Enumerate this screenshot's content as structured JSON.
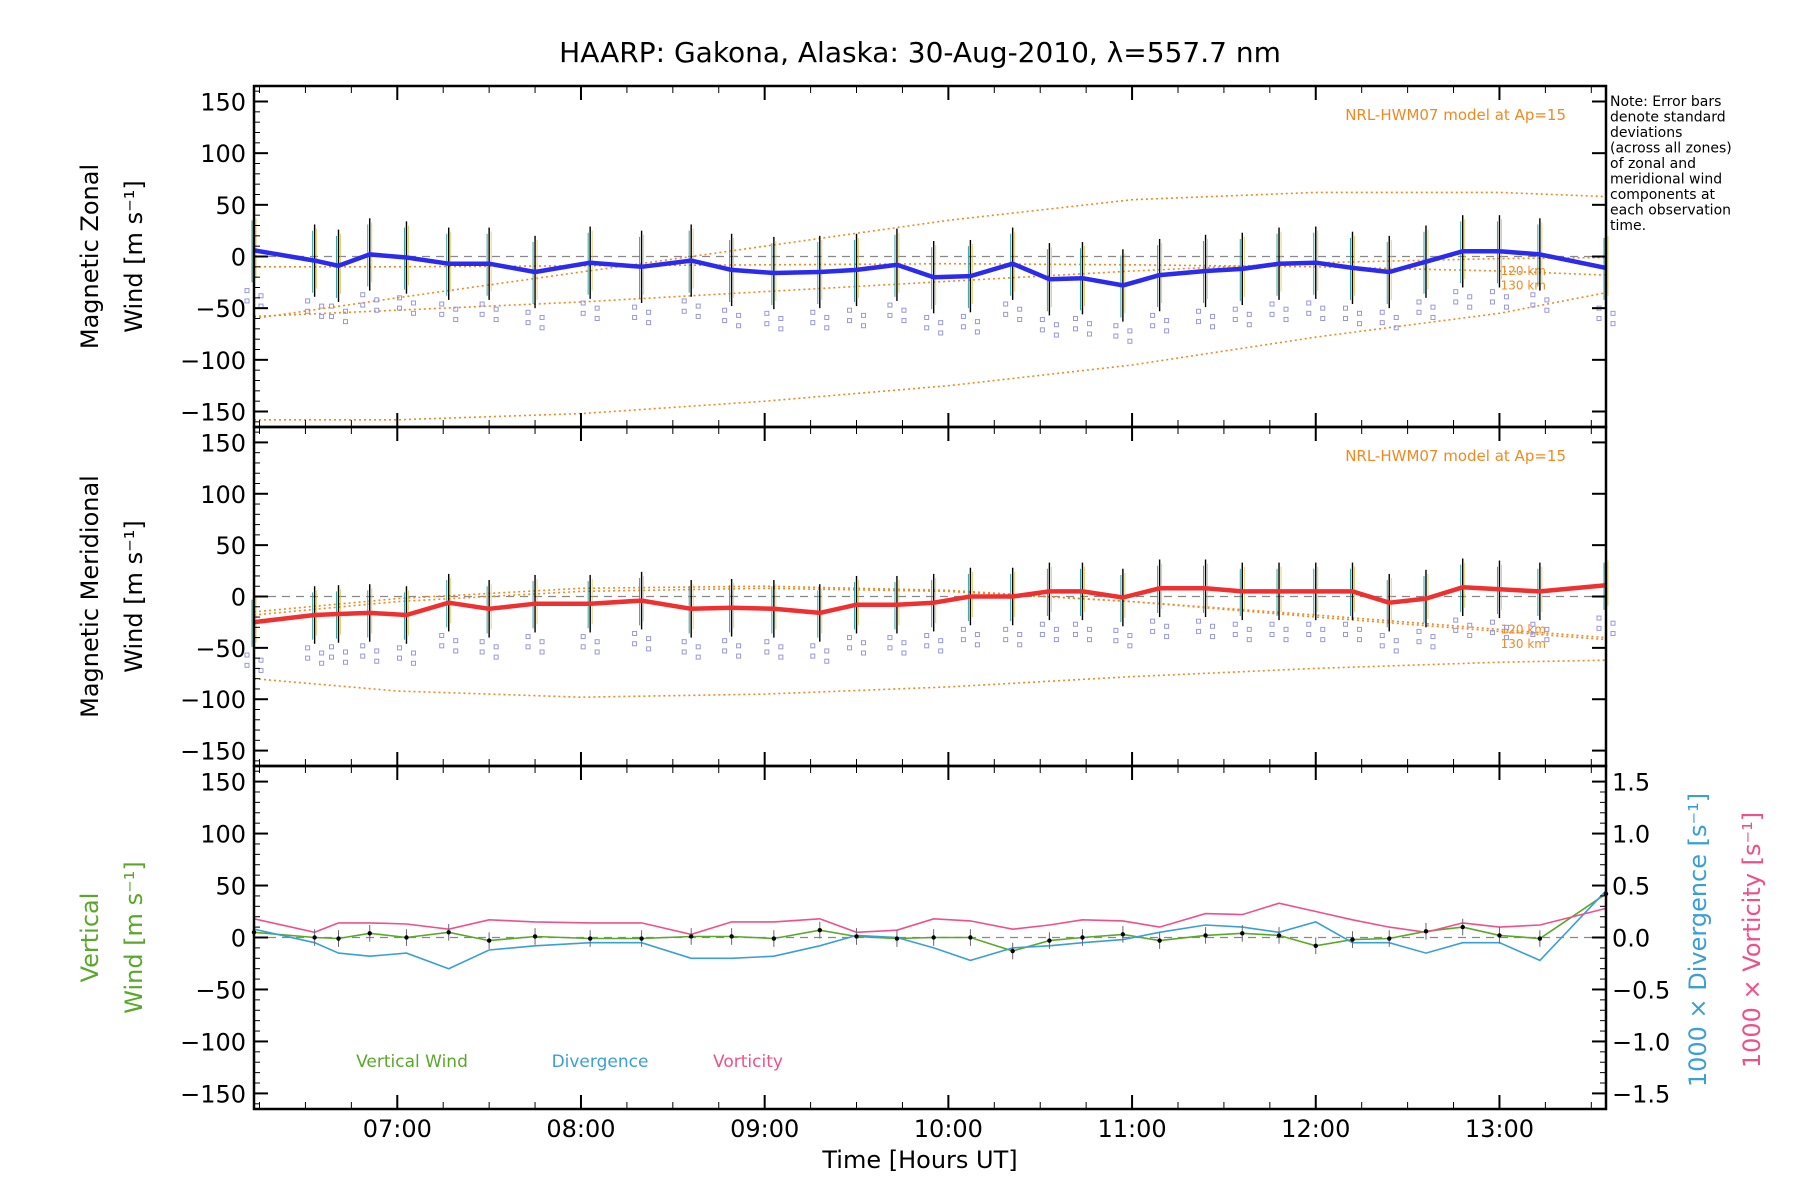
{
  "figure": {
    "title": "HAARP: Gakona,  Alaska: 30-Aug-2010, λ=557.7 nm",
    "note": [
      "Note: Error bars",
      "denote standard",
      "deviations",
      "(across all zones)",
      "of zonal and",
      "meridional wind",
      "components at",
      "each observation",
      "time."
    ],
    "xlabel": "Time [Hours UT]",
    "model_label": "NRL-HWM07 model at Ap=15",
    "km_labels": [
      "120 km",
      "130 km"
    ]
  },
  "colors": {
    "zonal": "#2b2bf0",
    "meridional": "#f03030",
    "vertical": "#5aa82a",
    "divergence": "#3a9fd6",
    "vorticity": "#f0508a",
    "model": "#f08a20",
    "scatter": "#9898d8"
  },
  "chart_data": [
    {
      "type": "line",
      "panel": "zonal",
      "ylabel_lines": [
        "Magnetic Zonal",
        "Wind [m s⁻¹]"
      ],
      "ylim": [
        -165,
        165
      ],
      "yticks": [
        "150",
        "100",
        "50",
        "0",
        "−50",
        "−100",
        "−150"
      ],
      "xlim": [
        6.22,
        13.58
      ],
      "xticks": [
        "07:00",
        "08:00",
        "09:00",
        "10:00",
        "11:00",
        "12:00",
        "13:00"
      ],
      "x": [
        6.22,
        6.55,
        6.68,
        6.85,
        7.05,
        7.28,
        7.5,
        7.75,
        8.05,
        8.33,
        8.6,
        8.82,
        9.05,
        9.3,
        9.5,
        9.72,
        9.92,
        10.12,
        10.35,
        10.55,
        10.73,
        10.95,
        11.15,
        11.4,
        11.6,
        11.8,
        12.0,
        12.2,
        12.4,
        12.6,
        12.8,
        13.0,
        13.22,
        13.58
      ],
      "values": [
        6,
        -4,
        -9,
        2,
        -1,
        -7,
        -7,
        -15,
        -6,
        -10,
        -4,
        -13,
        -16,
        -15,
        -13,
        -8,
        -20,
        -19,
        -7,
        -22,
        -21,
        -28,
        -18,
        -14,
        -12,
        -7,
        -6,
        -11,
        -15,
        -5,
        5,
        5,
        2,
        -11
      ],
      "series_name": "",
      "error_bar": 35,
      "model_120km": {
        "x": [
          6.22,
          7.0,
          8.0,
          9.0,
          10.0,
          11.0,
          12.0,
          13.0,
          13.58
        ],
        "values": [
          -10,
          -10,
          -9,
          -8,
          -7,
          -8,
          -10,
          -14,
          -18
        ]
      },
      "model_130km": {
        "x": [
          6.22,
          7.0,
          8.0,
          9.0,
          10.0,
          11.0,
          12.0,
          13.0,
          13.58
        ],
        "values": [
          -58,
          -52,
          -44,
          -34,
          -24,
          -14,
          -6,
          -2,
          -1
        ]
      },
      "model_upper": {
        "x": [
          6.22,
          7.0,
          8.0,
          9.0,
          10.0,
          11.0,
          12.0,
          13.0,
          13.58
        ],
        "values": [
          -60,
          -40,
          -15,
          10,
          35,
          55,
          62,
          62,
          58
        ]
      },
      "model_lower": {
        "x": [
          6.22,
          7.0,
          8.0,
          9.0,
          10.0,
          11.0,
          12.0,
          13.0,
          13.58
        ],
        "values": [
          -158,
          -158,
          -152,
          -140,
          -125,
          -105,
          -78,
          -55,
          -35
        ]
      }
    },
    {
      "type": "line",
      "panel": "meridional",
      "ylabel_lines": [
        "Magnetic Meridional",
        "Wind [m s⁻¹]"
      ],
      "ylim": [
        -165,
        165
      ],
      "yticks": [
        "150",
        "100",
        "50",
        "0",
        "−50",
        "−100",
        "−150"
      ],
      "xlim": [
        6.22,
        13.58
      ],
      "x": [
        6.22,
        6.55,
        6.68,
        6.85,
        7.05,
        7.28,
        7.5,
        7.75,
        8.05,
        8.33,
        8.6,
        8.82,
        9.05,
        9.3,
        9.5,
        9.72,
        9.92,
        10.12,
        10.35,
        10.55,
        10.73,
        10.95,
        11.15,
        11.4,
        11.6,
        11.8,
        12.0,
        12.2,
        12.4,
        12.6,
        12.8,
        13.0,
        13.22,
        13.58
      ],
      "values": [
        -25,
        -18,
        -17,
        -16,
        -18,
        -6,
        -12,
        -7,
        -7,
        -4,
        -12,
        -11,
        -12,
        -16,
        -8,
        -8,
        -6,
        0,
        0,
        5,
        5,
        -1,
        8,
        8,
        5,
        5,
        5,
        5,
        -6,
        -2,
        9,
        7,
        5,
        11
      ],
      "series_name": "",
      "error_bar": 28,
      "model_120km": {
        "x": [
          6.22,
          7.0,
          8.0,
          9.0,
          10.0,
          11.0,
          12.0,
          13.0,
          13.58
        ],
        "values": [
          -18,
          -5,
          5,
          8,
          5,
          -5,
          -18,
          -32,
          -40
        ]
      },
      "model_130km": {
        "x": [
          6.22,
          7.0,
          8.0,
          9.0,
          10.0,
          11.0,
          12.0,
          13.0,
          13.58
        ],
        "values": [
          -15,
          -2,
          8,
          10,
          6,
          -5,
          -20,
          -34,
          -42
        ]
      },
      "model_lower": {
        "x": [
          6.22,
          7.0,
          8.0,
          9.0,
          10.0,
          11.0,
          12.0,
          13.0,
          13.58
        ],
        "values": [
          -80,
          -92,
          -98,
          -95,
          -88,
          -78,
          -70,
          -64,
          -62
        ]
      }
    },
    {
      "type": "line",
      "panel": "vertical",
      "ylabel_lines": [
        "Vertical",
        "Wind [m s⁻¹]"
      ],
      "ylim": [
        -165,
        165
      ],
      "yticks": [
        "150",
        "100",
        "50",
        "0",
        "−50",
        "−100",
        "−150"
      ],
      "y2lim": [
        -1.65,
        1.65
      ],
      "y2ticks": [
        "1.5",
        "1.0",
        "0.5",
        "0.0",
        "−0.5",
        "−1.0",
        "−1.5"
      ],
      "y2label_divergence": "1000 × Divergence [s⁻¹]",
      "y2label_vorticity": "1000 × Vorticity [s⁻¹]",
      "xlim": [
        6.22,
        13.58
      ],
      "x": [
        6.22,
        6.55,
        6.68,
        6.85,
        7.05,
        7.28,
        7.5,
        7.75,
        8.05,
        8.33,
        8.6,
        8.82,
        9.05,
        9.3,
        9.5,
        9.72,
        9.92,
        10.12,
        10.35,
        10.55,
        10.73,
        10.95,
        11.15,
        11.4,
        11.6,
        11.8,
        12.0,
        12.2,
        12.4,
        12.6,
        12.8,
        13.0,
        13.22,
        13.58
      ],
      "series": [
        {
          "name": "Vertical Wind",
          "axis": "left",
          "values": [
            5,
            0,
            -1,
            4,
            0,
            5,
            -3,
            1,
            -1,
            -1,
            1,
            1,
            -1,
            7,
            1,
            -1,
            0,
            0,
            -13,
            -3,
            0,
            3,
            -3,
            2,
            4,
            2,
            -8,
            -2,
            -1,
            6,
            10,
            2,
            -1,
            42
          ]
        },
        {
          "name": "Divergence",
          "axis": "right",
          "values": [
            0.08,
            -0.05,
            -0.15,
            -0.18,
            -0.15,
            -0.3,
            -0.12,
            -0.08,
            -0.05,
            -0.05,
            -0.2,
            -0.2,
            -0.18,
            -0.08,
            0.02,
            0.0,
            -0.1,
            -0.22,
            -0.1,
            -0.08,
            -0.05,
            -0.02,
            0.05,
            0.12,
            0.1,
            0.05,
            0.15,
            -0.05,
            -0.05,
            -0.15,
            -0.05,
            -0.05,
            -0.22,
            0.45
          ]
        },
        {
          "name": "Vorticity",
          "axis": "right",
          "values": [
            0.18,
            0.05,
            0.14,
            0.14,
            0.13,
            0.08,
            0.17,
            0.15,
            0.14,
            0.14,
            0.03,
            0.15,
            0.15,
            0.18,
            0.05,
            0.07,
            0.18,
            0.16,
            0.08,
            0.12,
            0.17,
            0.16,
            0.1,
            0.23,
            0.22,
            0.33,
            0.25,
            0.17,
            0.1,
            0.05,
            0.14,
            0.1,
            0.12,
            0.28
          ]
        }
      ],
      "legend": [
        "Vertical Wind",
        "Divergence",
        "Vorticity"
      ]
    }
  ]
}
